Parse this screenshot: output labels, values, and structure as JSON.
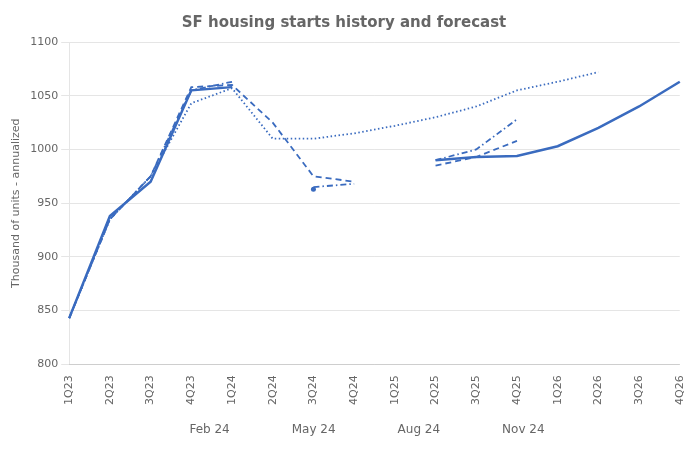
{
  "chart_data": {
    "type": "line",
    "title": "SF housing starts history and forecast",
    "ylabel": "Thousand of units - annualized",
    "categories": [
      "1Q23",
      "2Q23",
      "3Q23",
      "4Q23",
      "1Q24",
      "2Q24",
      "3Q24",
      "4Q24",
      "1Q25",
      "2Q25",
      "3Q25",
      "4Q25",
      "1Q26",
      "2Q26",
      "3Q26",
      "4Q26"
    ],
    "series": [
      {
        "name": "Feb 24",
        "color": "#3a6bbf",
        "line_style": "dotted",
        "values": [
          843,
          935,
          975,
          1043,
          1057,
          1010,
          1010,
          1015,
          1022,
          1030,
          1040,
          1055,
          1063,
          1072,
          null,
          null
        ]
      },
      {
        "name": "May 24",
        "color": "#3a6bbf",
        "line_style": "dashed",
        "values": [
          843,
          935,
          975,
          1058,
          1060,
          1025,
          975,
          970,
          null,
          985,
          993,
          1008,
          null,
          null,
          null,
          null
        ]
      },
      {
        "name": "Aug 24",
        "color": "#3a6bbf",
        "line_style": "dashdot",
        "values": [
          843,
          935,
          975,
          1055,
          1063,
          null,
          965,
          968,
          null,
          990,
          1000,
          1028,
          null,
          null,
          null,
          null
        ]
      },
      {
        "name": "Nov 24",
        "color": "#3a6bbf",
        "line_style": "solid",
        "values": [
          843,
          938,
          970,
          1055,
          1058,
          null,
          963,
          null,
          null,
          990,
          993,
          994,
          1003,
          1020,
          1040,
          1063
        ]
      }
    ],
    "ylim": [
      800,
      1100
    ],
    "yticks": [
      800,
      850,
      900,
      950,
      1000,
      1050,
      1100
    ],
    "grid": true,
    "legend": "bottom"
  }
}
